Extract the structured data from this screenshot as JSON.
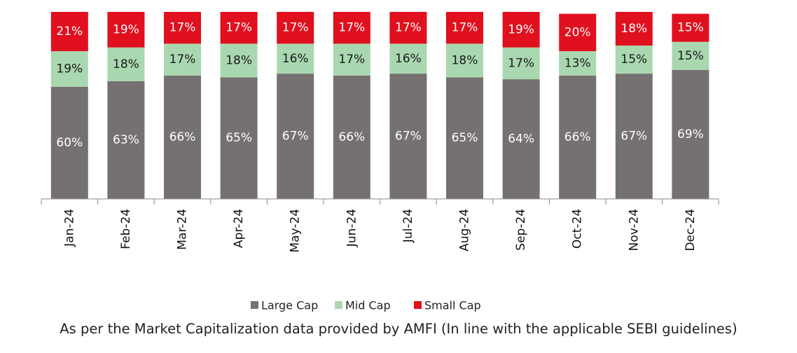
{
  "chart_data": {
    "type": "bar",
    "stacked": true,
    "categories": [
      "Jan-24",
      "Feb-24",
      "Mar-24",
      "Apr-24",
      "May-24",
      "Jun-24",
      "Jul-24",
      "Aug-24",
      "Sep-24",
      "Oct-24",
      "Nov-24",
      "Dec-24"
    ],
    "series": [
      {
        "name": "Large Cap",
        "color": "#767171",
        "label_color": "#ffffff",
        "values": [
          60,
          63,
          66,
          65,
          67,
          66,
          67,
          65,
          64,
          66,
          67,
          69
        ]
      },
      {
        "name": "Mid Cap",
        "color": "#a9d8b0",
        "label_color": "#1a1a1a",
        "values": [
          19,
          18,
          17,
          18,
          16,
          17,
          16,
          18,
          17,
          13,
          15,
          15
        ]
      },
      {
        "name": "Small Cap",
        "color": "#e0101e",
        "label_color": "#ffffff",
        "values": [
          21,
          19,
          17,
          17,
          17,
          17,
          17,
          17,
          19,
          20,
          18,
          15
        ]
      }
    ],
    "value_suffix": "%",
    "ylim": [
      0,
      100
    ],
    "grid": false,
    "legend_position": "bottom",
    "title": "",
    "xlabel": "",
    "ylabel": ""
  },
  "footnote": "As per the Market Capitalization data provided by AMFI (In line with the applicable SEBI guidelines)"
}
